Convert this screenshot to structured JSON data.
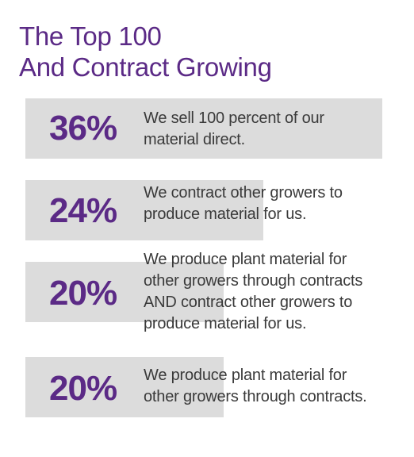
{
  "title": {
    "line1": "The Top 100",
    "line2": "And Contract Growing"
  },
  "chart_data": {
    "type": "bar",
    "title": "The Top 100 And Contract Growing",
    "unit": "%",
    "xlim": [
      0,
      100
    ],
    "categories": [
      "We sell 100 percent of our material direct.",
      "We contract other growers to produce material for us.",
      "We produce plant material for other growers through contracts AND contract other growers to produce material for us.",
      "We produce plant material for other growers through contracts."
    ],
    "values": [
      36,
      24,
      20,
      20
    ],
    "labels": [
      "36%",
      "24%",
      "20%",
      "20%"
    ],
    "descriptions": [
      "We sell 100 percent of our\nmaterial direct.",
      "We contract other growers to\nproduce material for us.",
      "We produce plant material for\nother growers through contracts\nAND contract other growers to\nproduce material for us.",
      "We produce plant material for\nother growers through contracts."
    ],
    "colors": {
      "bar": "#dcdcdc",
      "percent_text": "#5b2a86",
      "title_text": "#5b2a86",
      "body_text": "#3a3a3a"
    }
  }
}
